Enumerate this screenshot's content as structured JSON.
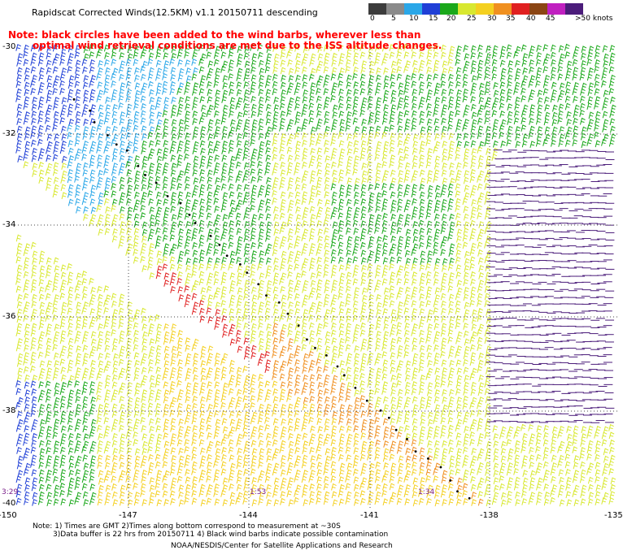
{
  "title": "Rapidscat Corrected Winds(12.5KM) v1.1 20150711 descending",
  "notes": {
    "line1": "Note: black circles have been added to the wind barbs, wherever less than",
    "line2": "optimal wind retrieval conditions are met due to the ISS altitude changes."
  },
  "colorbar": {
    "labels": [
      "0",
      "5",
      "10",
      "15",
      "20",
      "25",
      "30",
      "35",
      "40",
      "45",
      ">50 knots"
    ],
    "colors": [
      "#3c3c3c",
      "#8a8a8a",
      "#2aa7e8",
      "#1f3fd6",
      "#1aa81a",
      "#d8e830",
      "#f4d020",
      "#f09020",
      "#e02020",
      "#8b4513",
      "#c020c0",
      "#4b1c7a"
    ]
  },
  "map": {
    "lat_labels": [
      "-30",
      "-32",
      "-34",
      "-36",
      "-38",
      "-40"
    ],
    "lon_labels": [
      "-150",
      "-147",
      "-144",
      "-141",
      "-138",
      "-135"
    ],
    "time_labels": [
      "3:29",
      "1:53",
      "1:34"
    ],
    "lon_range": [
      -150,
      -135
    ],
    "lat_range": [
      -40,
      -30
    ]
  },
  "footnotes": {
    "line1": "Note: 1) Times are GMT 2)Times along bottom correspond to measurement at ~30S",
    "line2": "3)Data buffer is 22 hrs from 20150711 4) Black wind barbs indicate possible contamination",
    "credit": "NOAA/NESDIS/Center for Satellite Applications and Research"
  }
}
